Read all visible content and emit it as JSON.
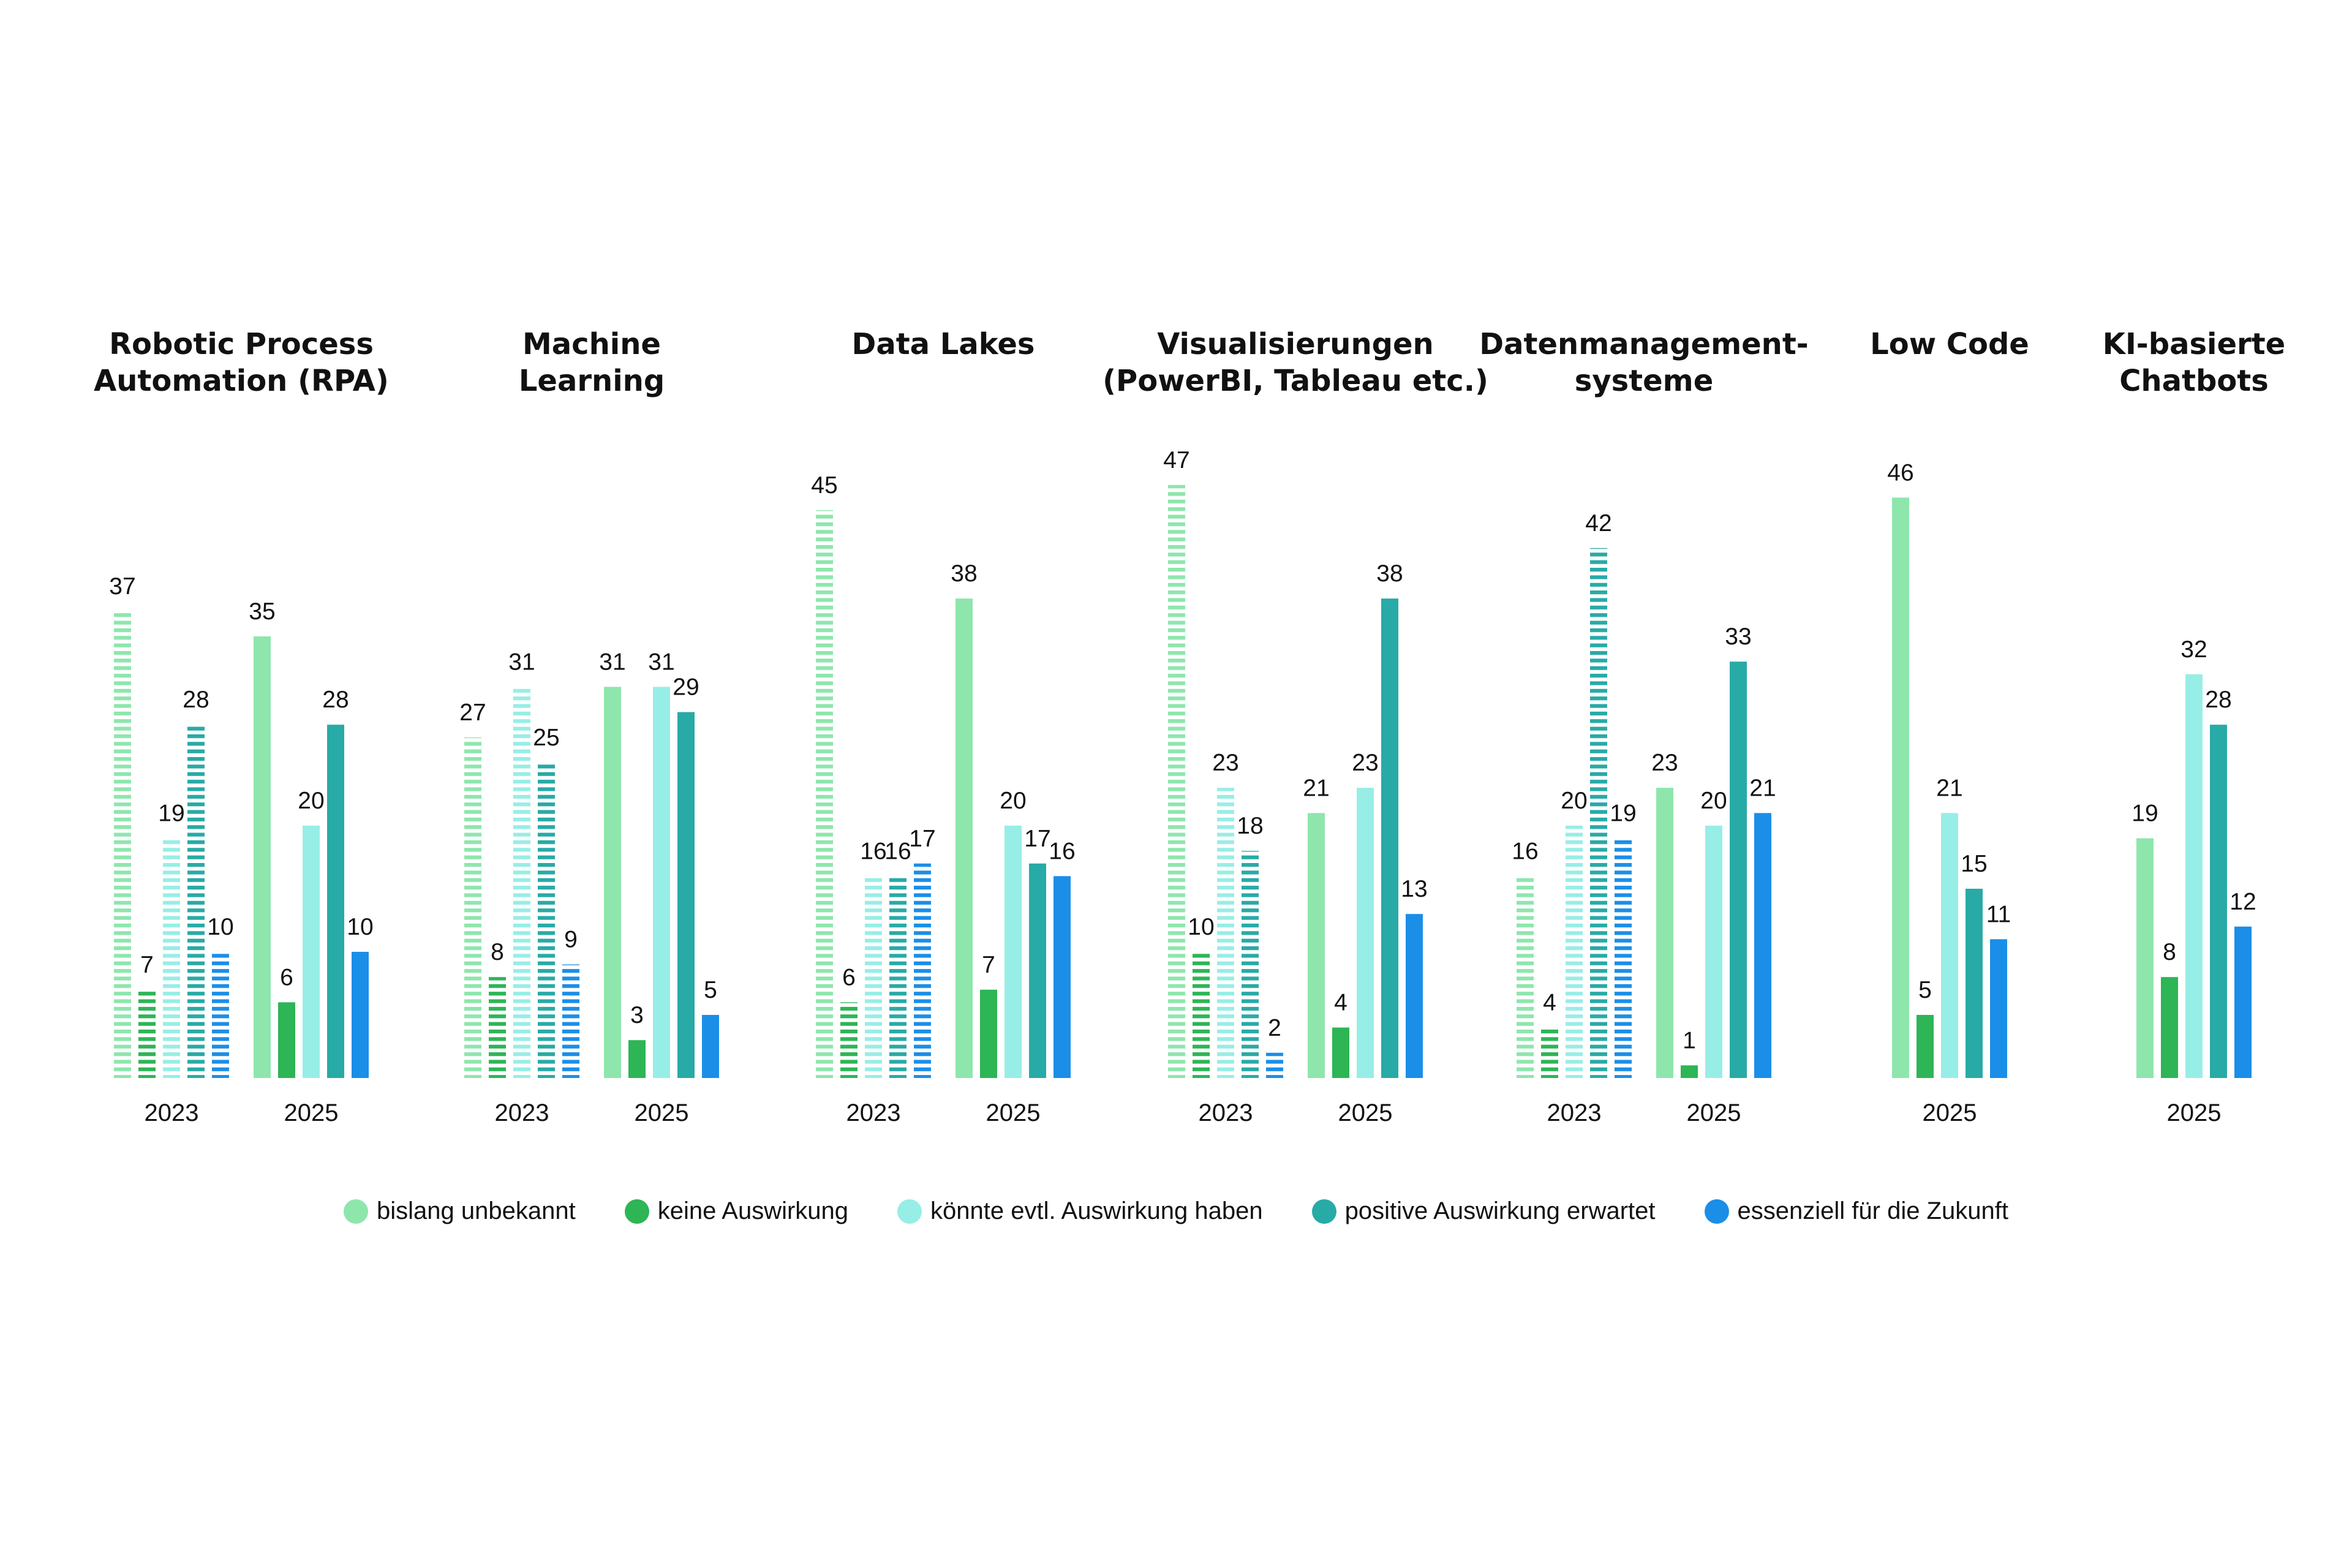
{
  "chart_data": {
    "type": "bar",
    "series": [
      {
        "name": "bislang unbekannt",
        "color": "#8ee6ad"
      },
      {
        "name": "keine Auswirkung",
        "color": "#2db556"
      },
      {
        "name": "könnte evtl. Auswirkung haben",
        "color": "#97eee6"
      },
      {
        "name": "positive Auswirkung erwartet",
        "color": "#28aaa6"
      },
      {
        "name": "essenziell für die Zukunft",
        "color": "#1b8ee8"
      }
    ],
    "groups": [
      {
        "title_lines": [
          "Robotic Process",
          "Automation (RPA)"
        ],
        "years": [
          {
            "year": "2023",
            "style": "dashed",
            "values": [
              37,
              7,
              19,
              28,
              10
            ]
          },
          {
            "year": "2025",
            "style": "solid",
            "values": [
              35,
              6,
              20,
              28,
              10
            ]
          }
        ]
      },
      {
        "title_lines": [
          "Machine",
          "Learning"
        ],
        "years": [
          {
            "year": "2023",
            "style": "dashed",
            "values": [
              27,
              8,
              31,
              25,
              9
            ]
          },
          {
            "year": "2025",
            "style": "solid",
            "values": [
              31,
              3,
              31,
              29,
              5
            ]
          }
        ]
      },
      {
        "title_lines": [
          "Data Lakes"
        ],
        "years": [
          {
            "year": "2023",
            "style": "dashed",
            "values": [
              45,
              6,
              16,
              16,
              17
            ]
          },
          {
            "year": "2025",
            "style": "solid",
            "values": [
              38,
              7,
              20,
              17,
              16
            ]
          }
        ]
      },
      {
        "title_lines": [
          "Visualisierungen",
          "(PowerBI, Tableau etc.)"
        ],
        "years": [
          {
            "year": "2023",
            "style": "dashed",
            "values": [
              47,
              10,
              23,
              18,
              2
            ]
          },
          {
            "year": "2025",
            "style": "solid",
            "values": [
              21,
              4,
              23,
              38,
              13
            ]
          }
        ]
      },
      {
        "title_lines": [
          "Datenmanagement-",
          "systeme"
        ],
        "years": [
          {
            "year": "2023",
            "style": "dashed",
            "values": [
              16,
              4,
              20,
              42,
              19
            ]
          },
          {
            "year": "2025",
            "style": "solid",
            "values": [
              23,
              1,
              20,
              33,
              21
            ]
          }
        ]
      },
      {
        "title_lines": [
          "Low Code"
        ],
        "years": [
          {
            "year": "2025",
            "style": "solid",
            "values": [
              46,
              5,
              21,
              15,
              11
            ]
          }
        ]
      },
      {
        "title_lines": [
          "KI-basierte",
          "Chatbots"
        ],
        "years": [
          {
            "year": "2025",
            "style": "solid",
            "values": [
              19,
              8,
              32,
              28,
              12
            ]
          }
        ]
      }
    ],
    "ylim": [
      0,
      50
    ],
    "legend_position": "bottom"
  }
}
